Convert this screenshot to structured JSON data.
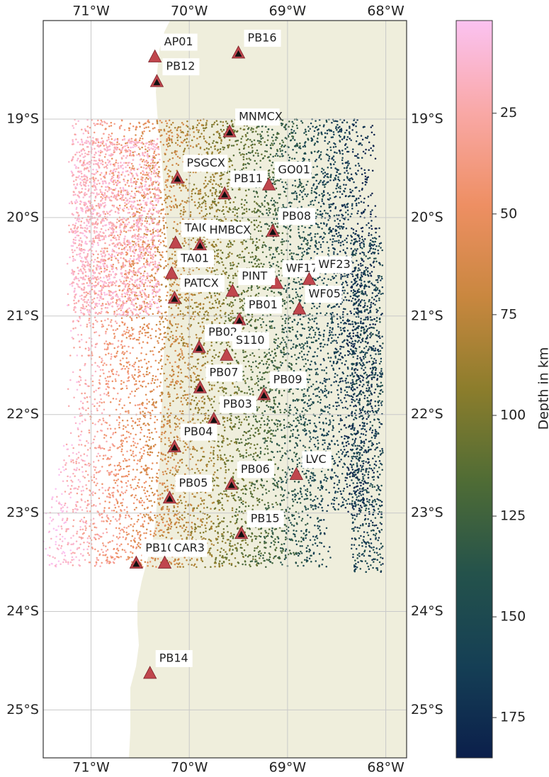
{
  "map": {
    "lon_ticks": [
      "71°W",
      "70°W",
      "69°W",
      "68°W"
    ],
    "lat_ticks": [
      "19°S",
      "20°S",
      "21°S",
      "22°S",
      "23°S",
      "24°S",
      "25°S"
    ],
    "land_color": "#efeedc",
    "ocean_color": "#ffffff",
    "grid": true
  },
  "stations": [
    {
      "name": "AP01",
      "lon": -70.35,
      "lat": -18.37,
      "marker": "red"
    },
    {
      "name": "PB16",
      "lon": -69.5,
      "lat": -18.33,
      "marker": "dark"
    },
    {
      "name": "PB12",
      "lon": -70.33,
      "lat": -18.62,
      "marker": "dark"
    },
    {
      "name": "MNMCX",
      "lon": -69.59,
      "lat": -19.13,
      "marker": "dark"
    },
    {
      "name": "PSGCX",
      "lon": -70.12,
      "lat": -19.6,
      "marker": "dark"
    },
    {
      "name": "PB11",
      "lon": -69.64,
      "lat": -19.76,
      "marker": "dark"
    },
    {
      "name": "GO01",
      "lon": -69.19,
      "lat": -19.67,
      "marker": "red"
    },
    {
      "name": "PB08",
      "lon": -69.15,
      "lat": -20.14,
      "marker": "dark"
    },
    {
      "name": "TAIQ",
      "lon": -70.14,
      "lat": -20.26,
      "marker": "red"
    },
    {
      "name": "HMBCX",
      "lon": -69.89,
      "lat": -20.28,
      "marker": "dark"
    },
    {
      "name": "TA01",
      "lon": -70.18,
      "lat": -20.57,
      "marker": "red"
    },
    {
      "name": "WF17",
      "lon": -69.11,
      "lat": -20.67,
      "marker": "red"
    },
    {
      "name": "WF23",
      "lon": -68.78,
      "lat": -20.63,
      "marker": "red"
    },
    {
      "name": "PATCX",
      "lon": -70.15,
      "lat": -20.82,
      "marker": "dark"
    },
    {
      "name": "PINT",
      "lon": -69.56,
      "lat": -20.75,
      "marker": "red"
    },
    {
      "name": "WF05",
      "lon": -68.88,
      "lat": -20.93,
      "marker": "red"
    },
    {
      "name": "PB01",
      "lon": -69.49,
      "lat": -21.04,
      "marker": "dark"
    },
    {
      "name": "PB02",
      "lon": -69.9,
      "lat": -21.32,
      "marker": "dark"
    },
    {
      "name": "S110",
      "lon": -69.62,
      "lat": -21.4,
      "marker": "red"
    },
    {
      "name": "PB07",
      "lon": -69.89,
      "lat": -21.73,
      "marker": "dark"
    },
    {
      "name": "PB09",
      "lon": -69.24,
      "lat": -21.8,
      "marker": "dark"
    },
    {
      "name": "PB03",
      "lon": -69.75,
      "lat": -22.05,
      "marker": "dark"
    },
    {
      "name": "PB04",
      "lon": -70.15,
      "lat": -22.33,
      "marker": "dark"
    },
    {
      "name": "LVC",
      "lon": -68.91,
      "lat": -22.61,
      "marker": "red"
    },
    {
      "name": "PB06",
      "lon": -69.57,
      "lat": -22.71,
      "marker": "dark"
    },
    {
      "name": "PB05",
      "lon": -70.2,
      "lat": -22.85,
      "marker": "dark"
    },
    {
      "name": "PB15",
      "lon": -69.47,
      "lat": -23.21,
      "marker": "dark"
    },
    {
      "name": "PB10",
      "lon": -70.54,
      "lat": -23.51,
      "marker": "dark"
    },
    {
      "name": "CAR3",
      "lon": -70.25,
      "lat": -23.51,
      "marker": "red"
    },
    {
      "name": "PB14",
      "lon": -70.4,
      "lat": -24.63,
      "marker": "red"
    }
  ],
  "colorbar": {
    "label": "Depth in km",
    "ticks": [
      "25",
      "50",
      "75",
      "100",
      "125",
      "150",
      "175"
    ],
    "tick_values": [
      25,
      50,
      75,
      100,
      125,
      150,
      175
    ],
    "range": [
      2,
      185
    ],
    "colormap": [
      "#fbc2f1",
      "#f9a8a6",
      "#ee8f63",
      "#c9873f",
      "#8c7d2c",
      "#4f6c35",
      "#24524b",
      "#153f55",
      "#0b1f4b"
    ]
  },
  "colors": {
    "station_fill": "#c0464d",
    "station_dark_inner": "#111111",
    "grid_color": "#c9c9c9"
  }
}
